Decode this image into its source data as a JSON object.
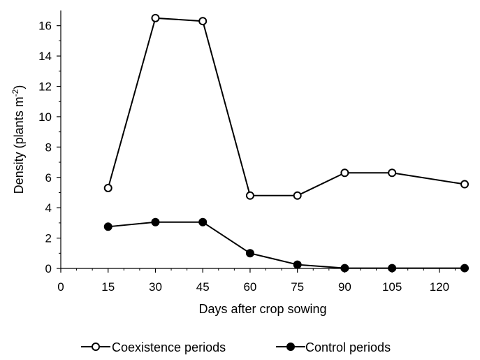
{
  "chart_data": {
    "type": "line",
    "xlabel": "Days after crop sowing",
    "ylabel_main": "Density (plants m",
    "ylabel_sup": "-2",
    "ylabel_close": ")",
    "xlim": [
      0,
      128
    ],
    "ylim": [
      0,
      17
    ],
    "xticks": [
      0,
      15,
      30,
      45,
      60,
      75,
      90,
      105,
      120
    ],
    "yticks": [
      0,
      2,
      4,
      6,
      8,
      10,
      12,
      14,
      16
    ],
    "grid": false,
    "legend_position": "bottom",
    "series": [
      {
        "name": "Coexistence periods",
        "marker": "open-circle",
        "color": "#000000",
        "x": [
          15,
          30,
          45,
          60,
          75,
          90,
          105,
          128
        ],
        "y": [
          5.3,
          16.5,
          16.3,
          4.8,
          4.8,
          6.3,
          6.3,
          5.55
        ]
      },
      {
        "name": "Control periods",
        "marker": "filled-circle",
        "color": "#000000",
        "x": [
          15,
          30,
          45,
          60,
          75,
          90,
          105,
          128
        ],
        "y": [
          2.75,
          3.05,
          3.05,
          1.0,
          0.25,
          0.02,
          0.02,
          0.02
        ]
      }
    ]
  }
}
